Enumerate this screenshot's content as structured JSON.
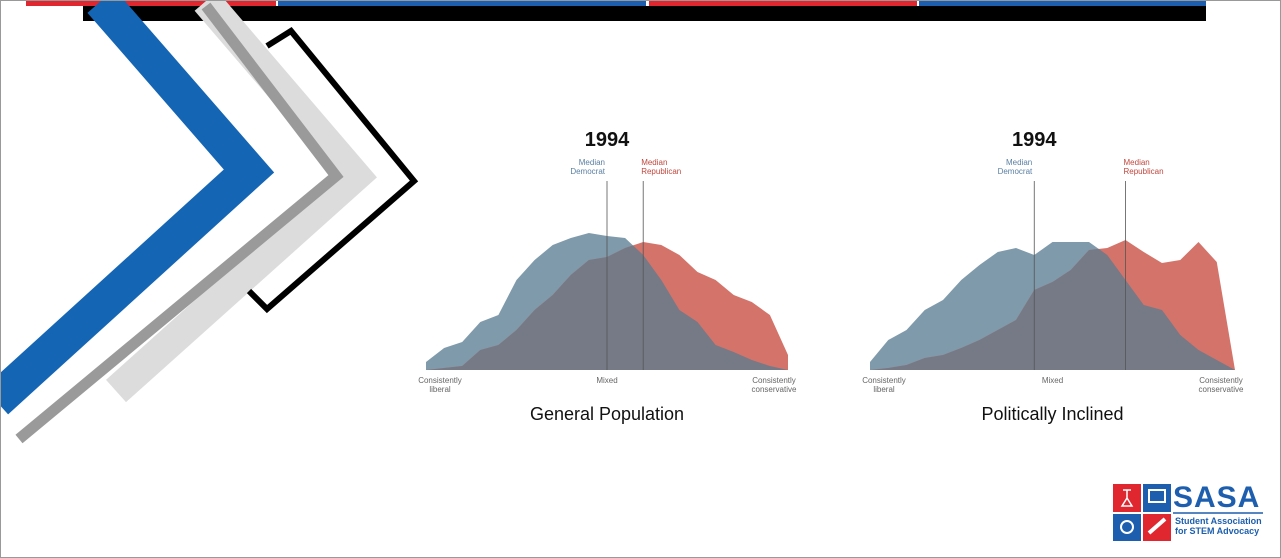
{
  "chart_data": [
    {
      "type": "area",
      "title": "1994",
      "caption": "General Population",
      "x": [
        0,
        1,
        2,
        3,
        4,
        5,
        6,
        7,
        8,
        9,
        10,
        11,
        12,
        13,
        14,
        15,
        16,
        17,
        18,
        19,
        20
      ],
      "xlim": [
        0,
        20
      ],
      "xticks": [
        {
          "value": 0,
          "label": "Consistently liberal"
        },
        {
          "value": 10,
          "label": "Mixed"
        },
        {
          "value": 20,
          "label": "Consistently conservative"
        }
      ],
      "ylim": [
        0,
        140
      ],
      "overlap_color": "#757a86",
      "series": [
        {
          "name": "Democrat",
          "color": "#7f9aab",
          "values": [
            8,
            22,
            28,
            48,
            55,
            90,
            110,
            125,
            132,
            137,
            134,
            132,
            115,
            90,
            60,
            48,
            25,
            18,
            10,
            4,
            0
          ]
        },
        {
          "name": "Republican",
          "color": "#d4736a",
          "values": [
            0,
            2,
            4,
            20,
            25,
            40,
            60,
            75,
            95,
            110,
            113,
            122,
            128,
            125,
            115,
            98,
            90,
            75,
            68,
            55,
            15
          ]
        }
      ],
      "medians": [
        {
          "label": "Median Democrat",
          "x": 10,
          "color": "#5a7fa3"
        },
        {
          "label": "Median Republican",
          "x": 12,
          "color": "#c0473d"
        }
      ]
    },
    {
      "type": "area",
      "title": "1994",
      "caption": "Politically Inclined",
      "x": [
        0,
        1,
        2,
        3,
        4,
        5,
        6,
        7,
        8,
        9,
        10,
        11,
        12,
        13,
        14,
        15,
        16,
        17,
        18,
        19,
        20
      ],
      "xlim": [
        0,
        20
      ],
      "xticks": [
        {
          "value": 0,
          "label": "Consistently liberal"
        },
        {
          "value": 10,
          "label": "Mixed"
        },
        {
          "value": 20,
          "label": "Consistently conservative"
        }
      ],
      "ylim": [
        0,
        140
      ],
      "overlap_color": "#757a86",
      "series": [
        {
          "name": "Democrat",
          "color": "#7f9aab",
          "values": [
            8,
            30,
            40,
            60,
            70,
            90,
            105,
            118,
            122,
            115,
            128,
            128,
            128,
            115,
            90,
            65,
            60,
            35,
            20,
            10,
            0
          ]
        },
        {
          "name": "Republican",
          "color": "#d4736a",
          "values": [
            0,
            2,
            5,
            12,
            15,
            22,
            30,
            40,
            50,
            80,
            88,
            100,
            120,
            122,
            130,
            118,
            107,
            110,
            128,
            108,
            0
          ]
        }
      ],
      "medians": [
        {
          "label": "Median Democrat",
          "x": 9,
          "color": "#5a7fa3"
        },
        {
          "label": "Median Republican",
          "x": 14,
          "color": "#c0473d"
        }
      ]
    }
  ],
  "logo": {
    "name": "SASA",
    "tagline": "Student Association for STEM Advocacy"
  }
}
